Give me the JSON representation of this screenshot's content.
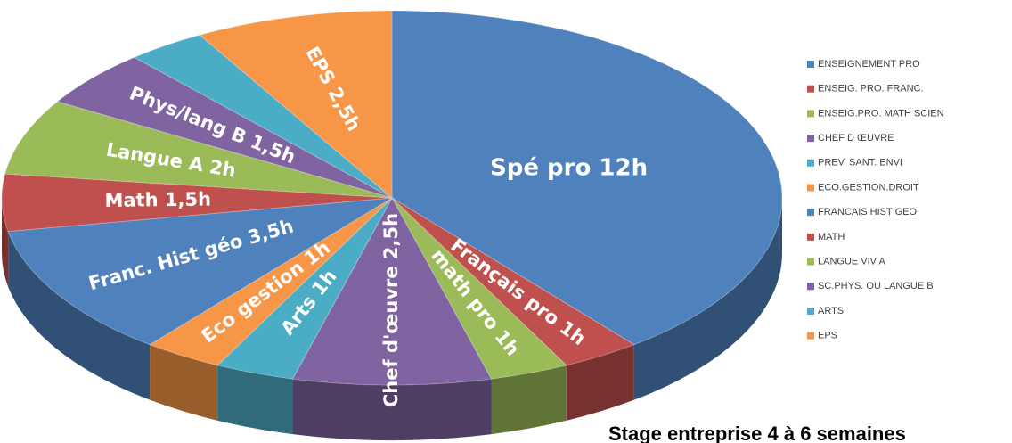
{
  "chart_data": {
    "type": "pie3d",
    "categories": [
      "ENSEIGNEMENT PRO",
      "ENSEIG. PRO. FRANC.",
      "ENSEIG.PRO. MATH SCIEN",
      "CHEF D ŒUVRE",
      "PREV. SANT. ENVI",
      "ECO.GESTION.DROIT",
      "FRANCAIS HIST GEO",
      "MATH",
      "LANGUE VIV A",
      "SC.PHYS. OU LANGUE B",
      "ARTS",
      "EPS"
    ],
    "values": [
      12,
      1,
      1,
      2.5,
      1,
      1,
      3.5,
      1.5,
      2,
      1.5,
      1,
      2.5
    ],
    "value_labels": [
      "Spé pro 12h",
      "Français pro 1h",
      "math pro 1h",
      "Chef d'œuvre 2,5h",
      "Arts 1h",
      "Eco gestion 1h",
      "Franc. Hist géo 3,5h",
      "Math 1,5h",
      "Langue A 2h",
      "Phys/lang B 1,5h",
      null,
      "EPS 2,5h"
    ],
    "colors": [
      "#4f81bd",
      "#c0504d",
      "#9bbb59",
      "#8064a2",
      "#4bacc6",
      "#f79646",
      "#4f81bd",
      "#c0504d",
      "#9bbb59",
      "#8064a2",
      "#4bacc6",
      "#f79646"
    ],
    "legend": "right",
    "annotation": "Stage entreprise 4 à 6 semaines"
  }
}
